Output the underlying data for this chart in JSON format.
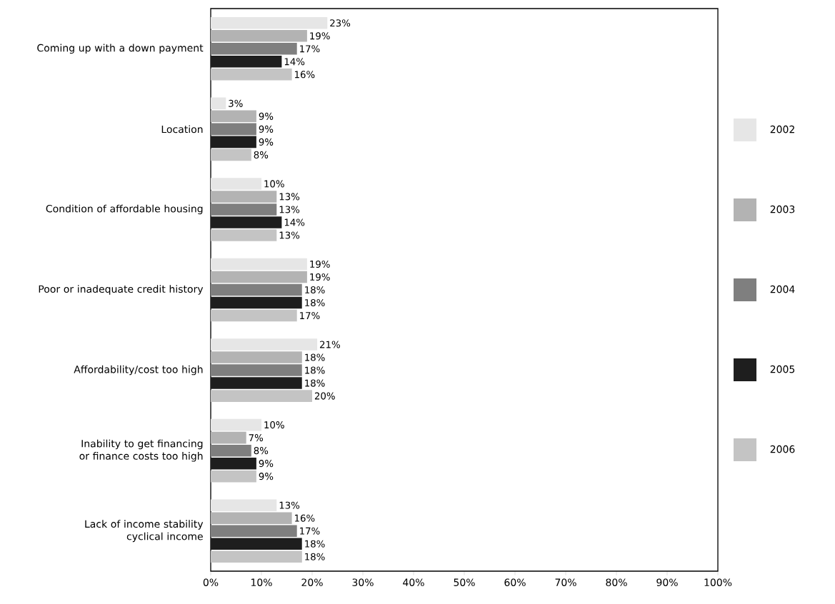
{
  "chart_data": {
    "type": "bar",
    "orientation": "horizontal",
    "legend": "right",
    "grid": false,
    "categories": [
      "Coming up with a down payment",
      "Location",
      "Condition of affordable housing",
      "Poor or inadequate credit history",
      "Affordability/cost too high",
      "Inability to get financing or finance costs too high",
      "Lack of income stability cyclical income"
    ],
    "xlim": [
      0,
      100
    ],
    "xticks": [
      {
        "value": 0,
        "label": "0%"
      },
      {
        "value": 10,
        "label": "10%"
      },
      {
        "value": 20,
        "label": "20%"
      },
      {
        "value": 30,
        "label": "30%"
      },
      {
        "value": 40,
        "label": "40%"
      },
      {
        "value": 50,
        "label": "50%"
      },
      {
        "value": 60,
        "label": "60%"
      },
      {
        "value": 70,
        "label": "70%"
      },
      {
        "value": 80,
        "label": "80%"
      },
      {
        "value": 90,
        "label": "90%"
      },
      {
        "value": 100,
        "label": "100%"
      }
    ],
    "series": [
      {
        "name": "2002",
        "color": "#e6e6e6",
        "values": [
          23,
          3,
          10,
          19,
          21,
          10,
          13
        ],
        "value_labels": [
          "23%",
          "3%",
          "10%",
          "19%",
          "21%",
          "10%",
          "13%"
        ]
      },
      {
        "name": "2003",
        "color": "#b3b3b3",
        "values": [
          19,
          9,
          13,
          19,
          18,
          7,
          16
        ],
        "value_labels": [
          "19%",
          "9%",
          "13%",
          "19%",
          "18%",
          "7%",
          "16%"
        ]
      },
      {
        "name": "2004",
        "color": "#7f7f7f",
        "values": [
          17,
          9,
          13,
          18,
          18,
          8,
          17
        ],
        "value_labels": [
          "17%",
          "9%",
          "13%",
          "18%",
          "18%",
          "8%",
          "17%"
        ]
      },
      {
        "name": "2005",
        "color": "#1e1e1e",
        "values": [
          14,
          9,
          14,
          18,
          18,
          9,
          18
        ],
        "value_labels": [
          "14%",
          "9%",
          "14%",
          "18%",
          "18%",
          "9%",
          "18%"
        ]
      },
      {
        "name": "2006",
        "color": "#c4c4c4",
        "values": [
          16,
          8,
          13,
          17,
          20,
          9,
          18
        ],
        "value_labels": [
          "16%",
          "8%",
          "13%",
          "17%",
          "20%",
          "9%",
          "18%"
        ]
      }
    ]
  }
}
